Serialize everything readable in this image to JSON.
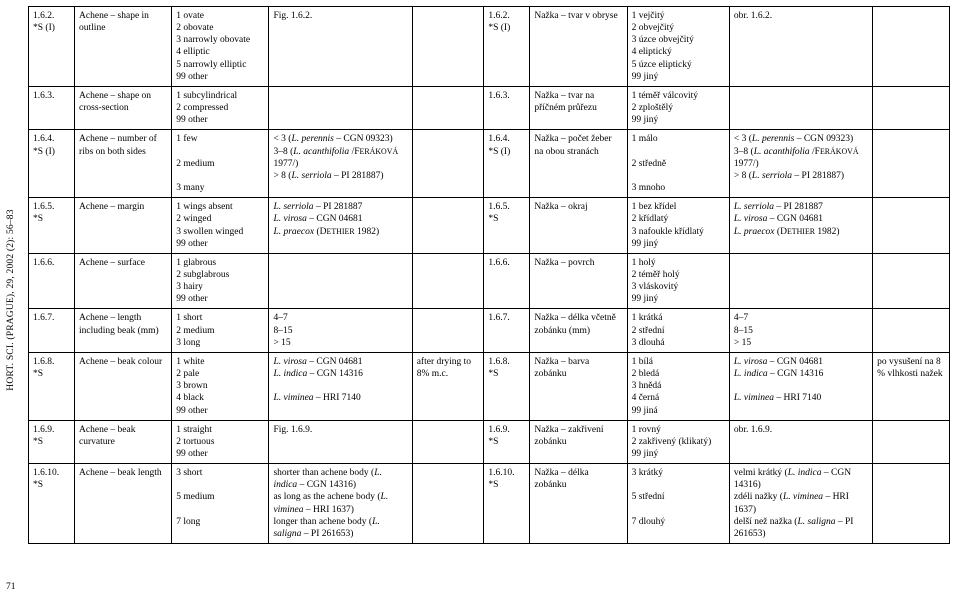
{
  "edge_label": "HORT. SCI. (PRAGUE), 29, 2002 (2): 56–83",
  "page_number": "71",
  "table": {
    "col_classes": [
      "col-id",
      "col-en1",
      "col-en2",
      "col-en3",
      "col-en4",
      "col-cz0",
      "col-cz1",
      "col-cz2",
      "col-cz3",
      "col-cz4"
    ],
    "rows": [
      {
        "cells": [
          "1.6.2.\n*S (I)",
          "Achene – shape in outline",
          "1 ovate\n2 obovate\n3 narrowly obovate\n4 elliptic\n5 narrowly elliptic\n99 other",
          "Fig. 1.6.2.",
          "",
          "1.6.2.\n*S (I)",
          "Nažka – tvar v obryse",
          "1 vejčitý\n2 obvejčitý\n3 úzce obvejčitý\n4 eliptický\n5 úzce eliptický\n99 jiný",
          "obr. 1.6.2.",
          ""
        ]
      },
      {
        "cells": [
          "1.6.3.",
          "Achene – shape on cross-section",
          "1 subcylindrical\n2 compressed\n99 other",
          "",
          "",
          "1.6.3.",
          "Nažka – tvar na příčném průřezu",
          "1 téměř válcovitý\n2 zploštělý\n99 jiný",
          "",
          ""
        ]
      },
      {
        "cells": [
          "1.6.4.\n*S (I)",
          "Achene – number of ribs on both sides",
          "1 few\n\n2 medium\n\n3 many",
          "< 3 (<i>L. perennis</i> – CGN 09323)\n3–8 (<i>L. acanthifolia</i> /F<small>ERÁKOVÁ</small> 1977/)\n> 8 (<i>L. serriola</i> – PI 281887)",
          "",
          "1.6.4.\n*S (I)",
          "Nažka – počet žeber na obou stranách",
          "1 málo\n\n2 středně\n\n3 mnoho",
          "< 3 (<i>L. perennis</i> – CGN 09323)\n3–8 (<i>L. acanthifolia</i> /F<small>ERÁKOVÁ</small> 1977/)\n> 8 (<i>L. serriola</i> – PI 281887)",
          ""
        ]
      },
      {
        "cells": [
          "1.6.5.\n*S",
          "Achene – margin",
          "1 wings absent\n2 winged\n3 swollen winged\n99 other",
          "<i>L. serriola</i> – PI 281887\n<i>L. virosa</i> – CGN 04681\n<i>L. praecox</i> (D<small>ETHIER</small> 1982)",
          "",
          "1.6.5.\n*S",
          "Nažka – okraj",
          "1 bez křídel\n2 křídlatý\n3 nafoukle křídlatý\n99 jiný",
          "<i>L. serriola</i> – PI 281887\n<i>L. virosa</i> – CGN 04681\n<i>L. praecox</i> (D<small>ETHIER</small> 1982)",
          ""
        ]
      },
      {
        "cells": [
          "1.6.6.",
          "Achene – surface",
          "1 glabrous\n2 subglabrous\n3 hairy\n99 other",
          "",
          "",
          "1.6.6.",
          "Nažka – povrch",
          "1 holý\n2 téměř holý\n3 vláskovitý\n99 jiný",
          "",
          ""
        ]
      },
      {
        "cells": [
          "1.6.7.",
          "Achene – length including beak (mm)",
          "1 short\n2 medium\n3 long",
          "4–7\n8–15\n> 15",
          "",
          "1.6.7.",
          "Nažka – délka včetně zobánku (mm)",
          "1 krátká\n2 střední\n3 dlouhá",
          "4–7\n8–15\n> 15",
          ""
        ]
      },
      {
        "cells": [
          "1.6.8.\n*S",
          "Achene – beak colour",
          "1 white\n2 pale\n3 brown\n4 black\n99 other",
          "<i>L. virosa</i> – CGN 04681\n<i>L. indica</i> – CGN 14316\n\n<i>L. viminea</i> – HRI 7140",
          "after drying to 8% m.c.",
          "1.6.8.\n*S",
          "Nažka – barva zobánku",
          "1 bílá\n2 bledá\n3 hnědá\n4 černá\n99 jiná",
          "<i>L. virosa</i> – CGN 04681\n<i>L. indica</i> – CGN 14316\n\n<i>L. viminea</i> – HRI 7140",
          "po vysušení na 8 % vlhkosti nažek"
        ]
      },
      {
        "cells": [
          "1.6.9.\n*S",
          "Achene – beak curvature",
          "1 straight\n2 tortuous\n99 other",
          "Fig. 1.6.9.",
          "",
          "1.6.9.\n*S",
          "Nažka – zakřivení zobánku",
          "1 rovný\n2 zakřivený (klikatý)\n99 jiný",
          "obr. 1.6.9.",
          ""
        ]
      },
      {
        "cells": [
          "1.6.10.\n*S",
          "Achene – beak length",
          "3 short\n\n5 medium\n\n7 long",
          "shorter than achene body (<i>L. indica</i> – CGN 14316)\nas long as the achene body (<i>L. viminea</i> – HRI 1637)\nlonger than achene body (<i>L. saligna</i> – PI 261653)",
          "",
          "1.6.10.\n*S",
          "Nažka – délka zobánku",
          "3 krátký\n\n5 střední\n\n7 dlouhý",
          "velmi krátký (<i>L. indica</i> – CGN 14316)\nzdéli nažky (<i>L. viminea</i> – HRI 1637)\ndelší než nažka (<i>L. saligna</i> – PI 261653)",
          ""
        ]
      }
    ]
  }
}
